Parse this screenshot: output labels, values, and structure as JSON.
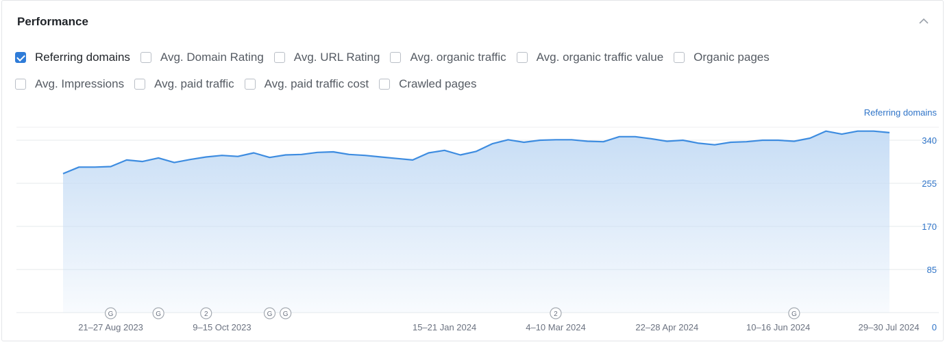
{
  "header": {
    "title": "Performance",
    "collapse_icon": "chevron-up-icon"
  },
  "metrics_row1": [
    {
      "label": "Referring domains",
      "checked": true
    },
    {
      "label": "Avg. Domain Rating",
      "checked": false
    },
    {
      "label": "Avg. URL Rating",
      "checked": false
    },
    {
      "label": "Avg. organic traffic",
      "checked": false
    },
    {
      "label": "Avg. organic traffic value",
      "checked": false
    },
    {
      "label": "Organic pages",
      "checked": false
    }
  ],
  "metrics_row2": [
    {
      "label": "Avg. Impressions",
      "checked": false
    },
    {
      "label": "Avg. paid traffic",
      "checked": false
    },
    {
      "label": "Avg. paid traffic cost",
      "checked": false
    },
    {
      "label": "Crawled pages",
      "checked": false
    }
  ],
  "colors": {
    "accent": "#2f7cd8",
    "line": "#3d8ce0",
    "fill": "#c7ddf5",
    "axis_text": "#2f74c8"
  },
  "chart_data": {
    "type": "area",
    "series": [
      {
        "name": "Referring domains",
        "values": [
          274,
          287,
          287,
          288,
          301,
          298,
          305,
          296,
          302,
          307,
          310,
          308,
          315,
          306,
          311,
          312,
          316,
          317,
          312,
          310,
          307,
          304,
          301,
          315,
          320,
          311,
          318,
          333,
          341,
          336,
          340,
          341,
          341,
          338,
          337,
          347,
          347,
          343,
          338,
          340,
          334,
          331,
          336,
          337,
          340,
          340,
          338,
          344,
          358,
          352,
          358,
          358,
          355
        ]
      }
    ],
    "ylabel": "Referring domains",
    "ylim": [
      0,
      340
    ],
    "yticks": [
      "340",
      "255",
      "170",
      "85",
      "0"
    ],
    "xticks": [
      "21–27 Aug 2023",
      "9–15 Oct 2023",
      "15–21 Jan 2024",
      "4–10 Mar 2024",
      "22–28 Apr 2024",
      "10–16 Jun 2024",
      "29–30 Jul 2024"
    ],
    "xtick_index": [
      3,
      10,
      24,
      31,
      38,
      45,
      52
    ],
    "markers": [
      {
        "label": "G",
        "index": 3
      },
      {
        "label": "G",
        "index": 6
      },
      {
        "label": "2",
        "index": 9
      },
      {
        "label": "G",
        "index": 13
      },
      {
        "label": "G",
        "index": 14
      },
      {
        "label": "2",
        "index": 31
      },
      {
        "label": "G",
        "index": 46
      }
    ],
    "grid": true
  }
}
